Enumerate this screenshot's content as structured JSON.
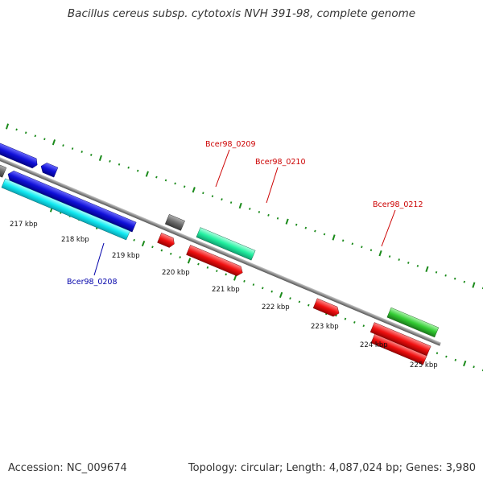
{
  "title": "Bacillus cereus subsp. cytotoxis NVH 391-98, complete genome",
  "footer": {
    "accession": "Accession: NC_009674",
    "topology": "Topology: circular; Length: 4,087,024 bp; Genes: 3,980"
  },
  "colors": {
    "backbone": "#8c8c8c",
    "tick_dots": "#1a8a1a",
    "blue_gene": "#1010cc",
    "cyan_gene": "#11e8f0",
    "red_gene": "#f01010",
    "green_gene": "#33cc33",
    "teal_gene": "#22f0a0",
    "gray_gene": "#6a6a6a",
    "label_red": "#cc0000",
    "label_blue": "#0000aa"
  },
  "ticks": [
    {
      "label": "217 kbp"
    },
    {
      "label": "218 kbp"
    },
    {
      "label": "219 kbp"
    },
    {
      "label": "220 kbp"
    },
    {
      "label": "221 kbp"
    },
    {
      "label": "222 kbp"
    },
    {
      "label": "223 kbp"
    },
    {
      "label": "224 kbp"
    },
    {
      "label": "225 kbp"
    }
  ],
  "gene_labels": [
    {
      "text": "Bcer98_0208",
      "color": "blue"
    },
    {
      "text": "Bcer98_0209",
      "color": "red"
    },
    {
      "text": "Bcer98_0210",
      "color": "red"
    },
    {
      "text": "Bcer98_0212",
      "color": "red"
    }
  ]
}
